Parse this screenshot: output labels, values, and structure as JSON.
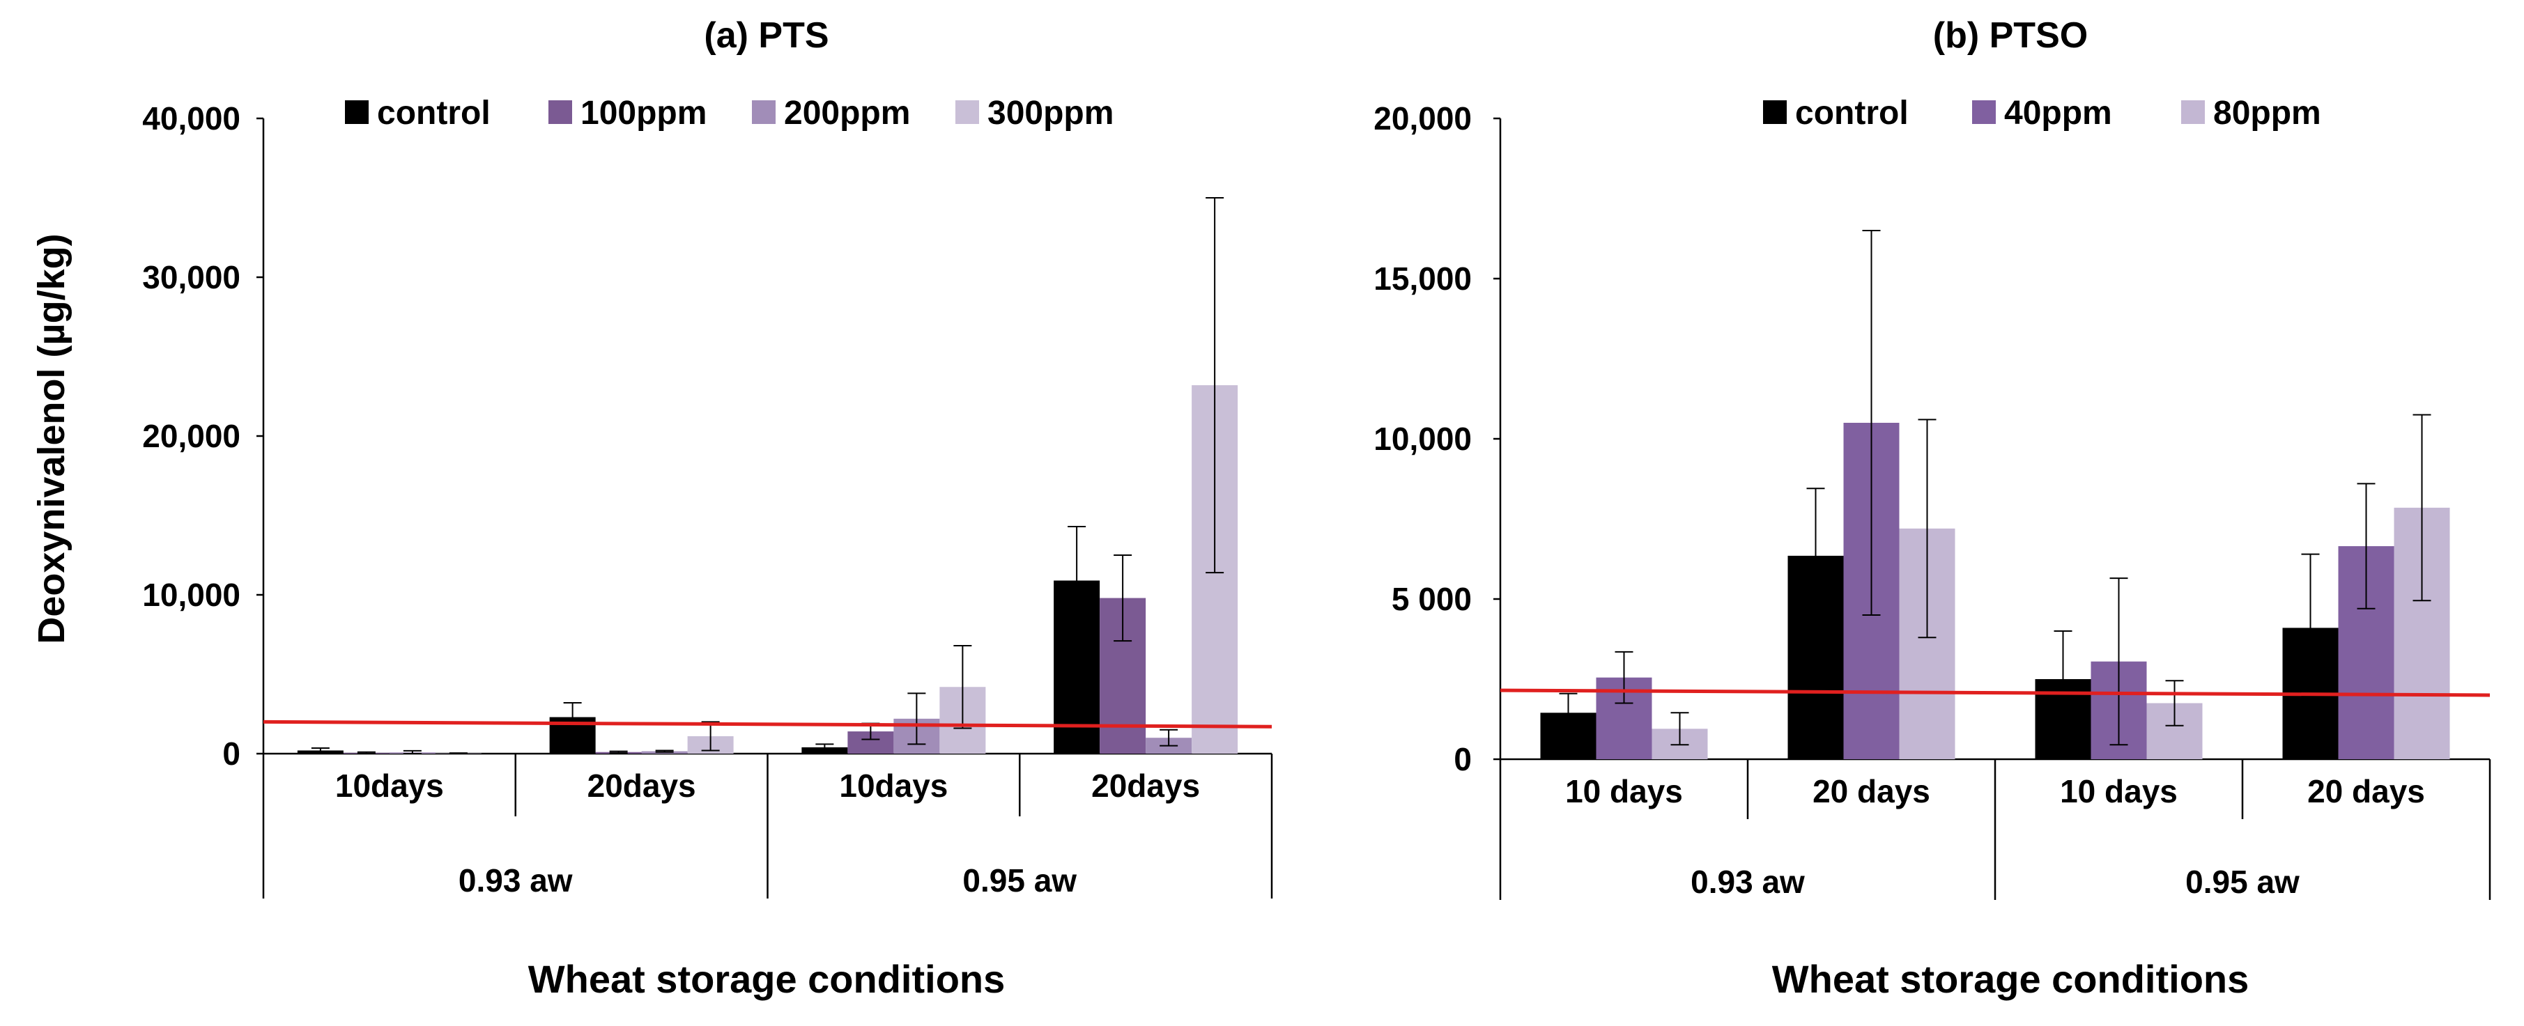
{
  "chart_data": [
    {
      "id": "pts",
      "type": "bar",
      "title": "(a) PTS",
      "ylabel": "Deoxynivalenol (µg/kg)",
      "xlabel": "Wheat storage conditions",
      "ylim": [
        0,
        40000
      ],
      "yticks": [
        {
          "value": 0,
          "label": "0"
        },
        {
          "value": 10000,
          "label": "10,000"
        },
        {
          "value": 20000,
          "label": "20,000"
        },
        {
          "value": 30000,
          "label": "30,000"
        },
        {
          "value": 40000,
          "label": "40,000"
        }
      ],
      "categories": [
        "10days",
        "20days",
        "10days",
        "20days"
      ],
      "groups": [
        {
          "label": "0.93 aw",
          "span": [
            0,
            1
          ]
        },
        {
          "label": "0.95 aw",
          "span": [
            2,
            3
          ]
        }
      ],
      "series": [
        {
          "name": "control",
          "color": "#000000",
          "values": [
            200,
            2300,
            400,
            10900
          ],
          "errors": [
            150,
            900,
            200,
            3400
          ]
        },
        {
          "name": "100ppm",
          "color": "#7b5a93",
          "values": [
            50,
            100,
            1400,
            9800
          ],
          "errors": [
            50,
            50,
            500,
            2700
          ]
        },
        {
          "name": "200ppm",
          "color": "#a18db8",
          "values": [
            80,
            150,
            2200,
            1000
          ],
          "errors": [
            100,
            50,
            1600,
            500
          ]
        },
        {
          "name": "300ppm",
          "color": "#c9bfd7",
          "values": [
            20,
            1100,
            4200,
            23200
          ],
          "errors": [
            20,
            900,
            2600,
            11800
          ]
        }
      ],
      "limit_line": {
        "start": 2000,
        "end": 1700,
        "color": "#e0201f"
      }
    },
    {
      "id": "ptso",
      "type": "bar",
      "title": "(b) PTSO",
      "ylabel": "",
      "xlabel": "Wheat storage conditions",
      "ylim": [
        0,
        20000
      ],
      "yticks": [
        {
          "value": 0,
          "label": "0"
        },
        {
          "value": 5000,
          "label": "5 000"
        },
        {
          "value": 10000,
          "label": "10,000"
        },
        {
          "value": 15000,
          "label": "15,000"
        },
        {
          "value": 20000,
          "label": "20,000"
        }
      ],
      "categories": [
        "10 days",
        "20 days",
        "10 days",
        "20 days"
      ],
      "groups": [
        {
          "label": "0.93 aw",
          "span": [
            0,
            1
          ]
        },
        {
          "label": "0.95 aw",
          "span": [
            2,
            3
          ]
        }
      ],
      "series": [
        {
          "name": "control",
          "color": "#000000",
          "values": [
            1450,
            6350,
            2500,
            4100
          ],
          "errors": [
            600,
            2100,
            1500,
            2300
          ]
        },
        {
          "name": "40ppm",
          "color": "#8060a0",
          "values": [
            2550,
            10500,
            3050,
            6650
          ],
          "errors": [
            800,
            6000,
            2600,
            1950
          ]
        },
        {
          "name": "80ppm",
          "color": "#c3b7d3",
          "values": [
            950,
            7200,
            1750,
            7850
          ],
          "errors": [
            500,
            3400,
            700,
            2900
          ]
        }
      ],
      "limit_line": {
        "start": 2150,
        "end": 2000,
        "color": "#e0201f"
      }
    }
  ]
}
